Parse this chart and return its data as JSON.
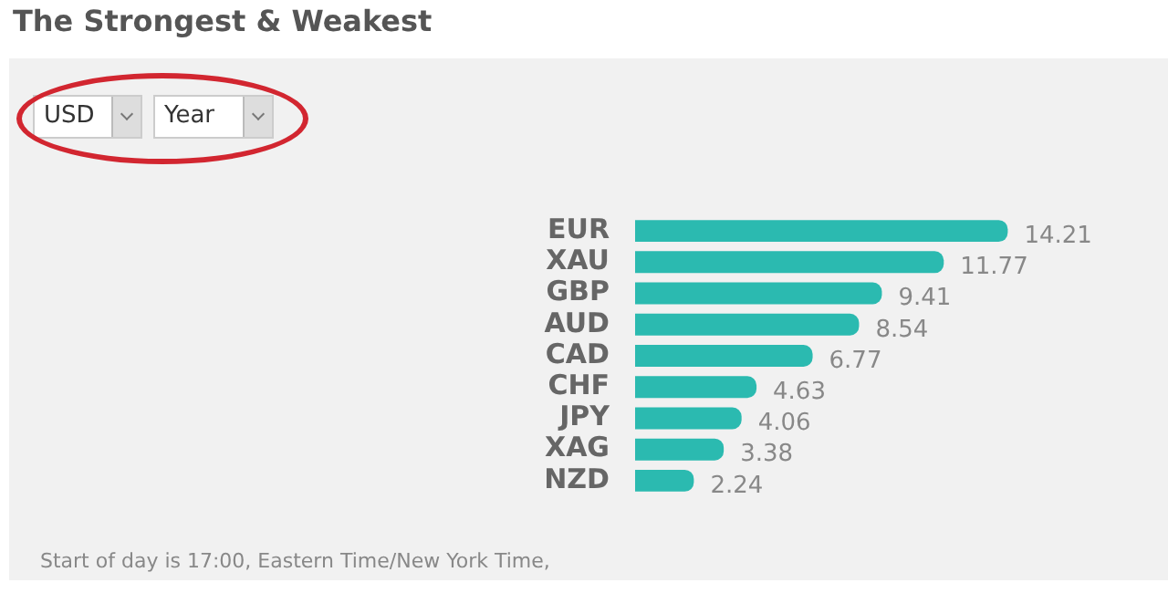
{
  "chart_data": {
    "type": "bar",
    "orientation": "horizontal",
    "title": "The Strongest & Weakest",
    "categories": [
      "EUR",
      "XAU",
      "GBP",
      "AUD",
      "CAD",
      "CHF",
      "JPY",
      "XAG",
      "NZD"
    ],
    "values": [
      14.21,
      11.77,
      9.41,
      8.54,
      6.77,
      4.63,
      4.06,
      3.38,
      2.24
    ],
    "color": "#2bbab0",
    "data_labels": true,
    "grid": false,
    "legend": false,
    "tick_labels": "y",
    "annotations": [
      "USD",
      "Year",
      "Start of day is 17:00, Eastern Time/New York Time,"
    ]
  }
}
